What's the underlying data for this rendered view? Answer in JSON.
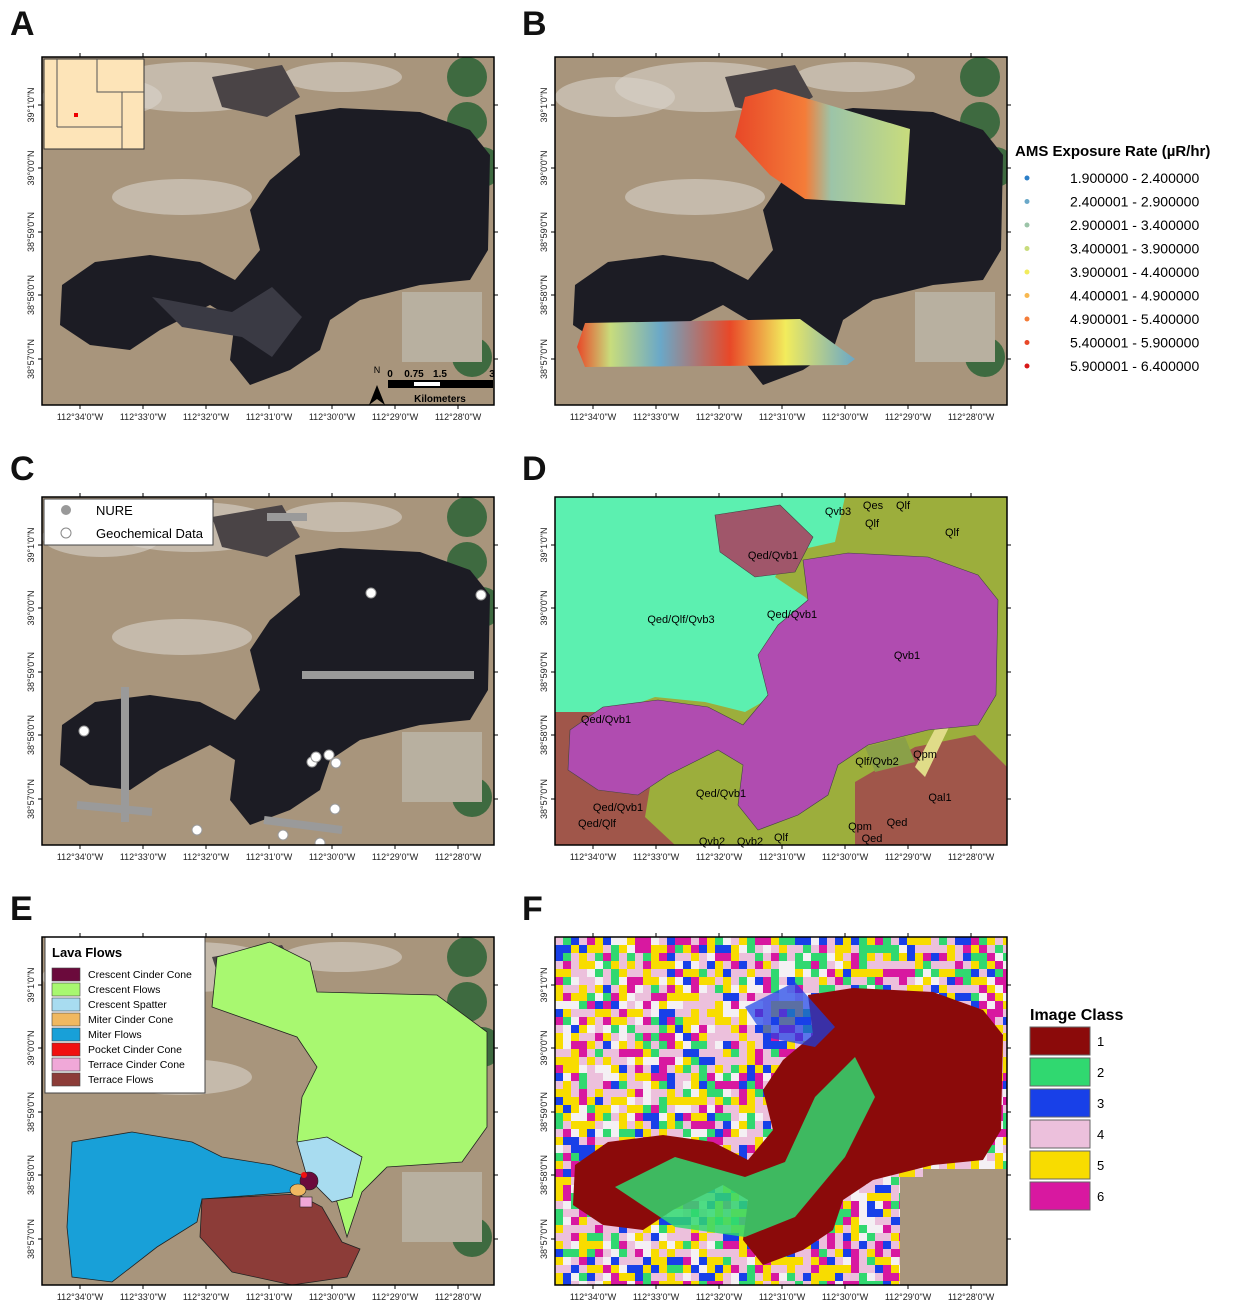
{
  "figure": {
    "lat_labels": [
      "39°1'0\"N",
      "39°0'0\"N",
      "38°59'0\"N",
      "38°58'0\"N",
      "38°57'0\"N"
    ],
    "lon_labels": [
      "112°34'0\"W",
      "112°33'0\"W",
      "112°32'0\"W",
      "112°31'0\"W",
      "112°30'0\"W",
      "112°29'0\"W",
      "112°28'0\"W"
    ],
    "panels": [
      {
        "letter": "A"
      },
      {
        "letter": "B"
      },
      {
        "letter": "C"
      },
      {
        "letter": "D"
      },
      {
        "letter": "E"
      },
      {
        "letter": "F"
      }
    ],
    "scale_bar": {
      "ticks": [
        "0",
        "0.75",
        "1.5",
        "3"
      ],
      "unit": "Kilometers",
      "north": "N"
    },
    "ams_legend": {
      "title": "AMS Exposure Rate (µR/hr)",
      "entries": [
        {
          "label": "1.900000 - 2.400000",
          "color": "#2c7fc8"
        },
        {
          "label": "2.400001 - 2.900000",
          "color": "#6aa8c8"
        },
        {
          "label": "2.900001 - 3.400000",
          "color": "#9cc4a8"
        },
        {
          "label": "3.400001 - 3.900000",
          "color": "#c8dc7c"
        },
        {
          "label": "3.900001 - 4.400000",
          "color": "#f2ec5c"
        },
        {
          "label": "4.400001 - 4.900000",
          "color": "#f8b850"
        },
        {
          "label": "4.900001 - 5.400000",
          "color": "#f47c38"
        },
        {
          "label": "5.400001 - 5.900000",
          "color": "#e84828"
        },
        {
          "label": "5.900001 - 6.400000",
          "color": "#d81818"
        }
      ]
    },
    "sample_legend": {
      "entries": [
        {
          "label": "NURE"
        },
        {
          "label": "Geochemical Data"
        }
      ]
    },
    "geology_labels": [
      "Qvb3",
      "Qes",
      "Qlf",
      "Qlf",
      "Qlf",
      "Qed/Qvb1",
      "Qed/Qlf/Qvb3",
      "Qed/Qvb1",
      "Qvb1",
      "Qed/Qvb1",
      "Qlf/Qvb2",
      "Qpm",
      "Qed/Qvb1",
      "Qed/Qvb1",
      "Qal1",
      "Qed/Qlf",
      "Qpm",
      "Qed",
      "Qed",
      "Qvb2",
      "Qvb2",
      "Qlf"
    ],
    "lava_legend": {
      "title": "Lava Flows",
      "entries": [
        {
          "label": "Crescent Cinder Cone",
          "color": "#6b0a3c"
        },
        {
          "label": "Crescent Flows",
          "color": "#a8f870"
        },
        {
          "label": "Crescent Spatter",
          "color": "#a8dcf0"
        },
        {
          "label": "Miter Cinder Cone",
          "color": "#f0b860"
        },
        {
          "label": "Miter Flows",
          "color": "#18a0d8"
        },
        {
          "label": "Pocket Cinder Cone",
          "color": "#f01010"
        },
        {
          "label": "Terrace Cinder Cone",
          "color": "#f0a8d8"
        },
        {
          "label": "Terrace Flows",
          "color": "#8c3c38"
        }
      ]
    },
    "class_legend": {
      "title": "Image Class",
      "entries": [
        {
          "label": 1,
          "color": "#8b0a0a"
        },
        {
          "label": 2,
          "color": "#30d870"
        },
        {
          "label": 3,
          "color": "#1840e8"
        },
        {
          "label": 4,
          "color": "#ecc0dc"
        },
        {
          "label": 5,
          "color": "#f8dc00"
        },
        {
          "label": 6,
          "color": "#d818a0"
        }
      ]
    }
  }
}
